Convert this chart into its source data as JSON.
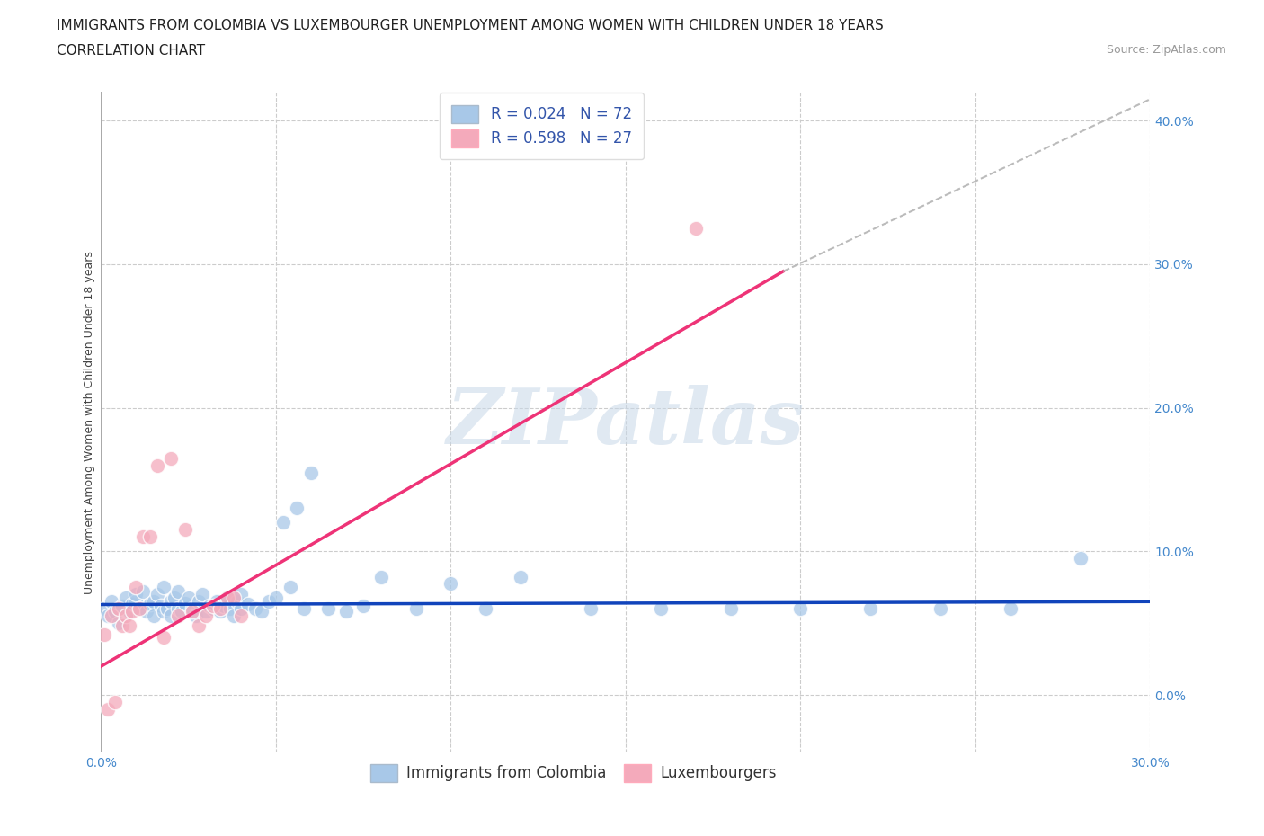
{
  "title_line1": "IMMIGRANTS FROM COLOMBIA VS LUXEMBOURGER UNEMPLOYMENT AMONG WOMEN WITH CHILDREN UNDER 18 YEARS",
  "title_line2": "CORRELATION CHART",
  "source": "Source: ZipAtlas.com",
  "ylabel": "Unemployment Among Women with Children Under 18 years",
  "xlim": [
    0.0,
    0.3
  ],
  "ylim": [
    -0.04,
    0.42
  ],
  "xticks": [
    0.0,
    0.05,
    0.1,
    0.15,
    0.2,
    0.25,
    0.3
  ],
  "yticks": [
    0.0,
    0.1,
    0.2,
    0.3,
    0.4
  ],
  "blue_color": "#A8C8E8",
  "pink_color": "#F4AABB",
  "blue_line_color": "#1144BB",
  "pink_line_color": "#EE3377",
  "background_color": "#FFFFFF",
  "watermark": "ZIPatlas",
  "R_blue": 0.024,
  "N_blue": 72,
  "R_pink": 0.598,
  "N_pink": 27,
  "blue_scatter_x": [
    0.001,
    0.002,
    0.003,
    0.004,
    0.005,
    0.006,
    0.007,
    0.008,
    0.009,
    0.01,
    0.01,
    0.011,
    0.012,
    0.013,
    0.014,
    0.015,
    0.015,
    0.016,
    0.017,
    0.018,
    0.018,
    0.019,
    0.02,
    0.02,
    0.021,
    0.022,
    0.022,
    0.023,
    0.024,
    0.025,
    0.026,
    0.027,
    0.028,
    0.029,
    0.03,
    0.031,
    0.032,
    0.033,
    0.034,
    0.035,
    0.036,
    0.037,
    0.038,
    0.039,
    0.04,
    0.04,
    0.042,
    0.044,
    0.046,
    0.048,
    0.05,
    0.052,
    0.054,
    0.056,
    0.058,
    0.06,
    0.065,
    0.07,
    0.075,
    0.08,
    0.09,
    0.1,
    0.11,
    0.12,
    0.14,
    0.16,
    0.18,
    0.2,
    0.22,
    0.24,
    0.26,
    0.28
  ],
  "blue_scatter_y": [
    0.06,
    0.055,
    0.065,
    0.058,
    0.05,
    0.062,
    0.068,
    0.058,
    0.063,
    0.065,
    0.07,
    0.06,
    0.072,
    0.058,
    0.063,
    0.065,
    0.055,
    0.07,
    0.062,
    0.058,
    0.075,
    0.06,
    0.065,
    0.055,
    0.068,
    0.06,
    0.072,
    0.058,
    0.064,
    0.068,
    0.06,
    0.055,
    0.065,
    0.07,
    0.058,
    0.062,
    0.06,
    0.065,
    0.058,
    0.062,
    0.068,
    0.06,
    0.055,
    0.065,
    0.06,
    0.07,
    0.063,
    0.06,
    0.058,
    0.065,
    0.068,
    0.12,
    0.075,
    0.13,
    0.06,
    0.155,
    0.06,
    0.058,
    0.062,
    0.082,
    0.06,
    0.078,
    0.06,
    0.082,
    0.06,
    0.06,
    0.06,
    0.06,
    0.06,
    0.06,
    0.06,
    0.095
  ],
  "pink_scatter_x": [
    0.001,
    0.002,
    0.003,
    0.004,
    0.005,
    0.006,
    0.007,
    0.008,
    0.009,
    0.01,
    0.011,
    0.012,
    0.014,
    0.016,
    0.018,
    0.02,
    0.022,
    0.024,
    0.026,
    0.028,
    0.03,
    0.032,
    0.034,
    0.036,
    0.038,
    0.04,
    0.17
  ],
  "pink_scatter_y": [
    0.042,
    -0.01,
    0.055,
    -0.005,
    0.06,
    0.048,
    0.055,
    0.048,
    0.058,
    0.075,
    0.06,
    0.11,
    0.11,
    0.16,
    0.04,
    0.165,
    0.055,
    0.115,
    0.058,
    0.048,
    0.055,
    0.062,
    0.06,
    0.068,
    0.068,
    0.055,
    0.325
  ],
  "blue_trend_x": [
    0.0,
    0.3
  ],
  "blue_trend_y": [
    0.063,
    0.065
  ],
  "pink_trend_x": [
    0.0,
    0.195
  ],
  "pink_trend_y": [
    0.02,
    0.295
  ],
  "dashed_trend_x": [
    0.195,
    0.3
  ],
  "dashed_trend_y": [
    0.295,
    0.415
  ],
  "legend_label_blue": "Immigrants from Colombia",
  "legend_label_pink": "Luxembourgers",
  "title_fontsize": 11,
  "axis_label_fontsize": 9,
  "tick_fontsize": 10,
  "legend_fontsize": 12
}
